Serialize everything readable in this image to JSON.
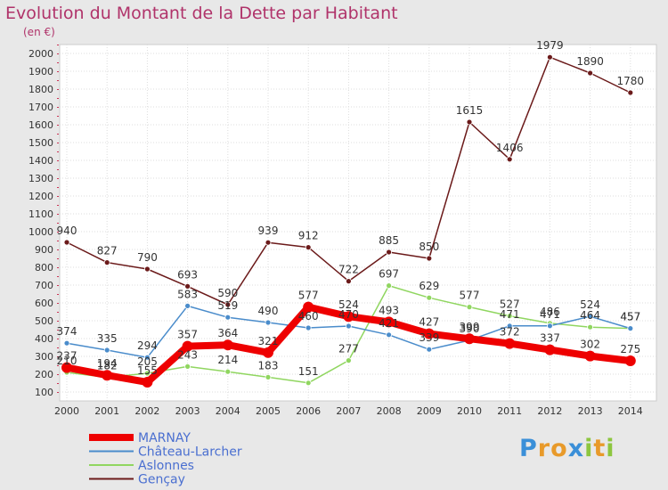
{
  "chart_data": {
    "type": "line",
    "title": "Evolution du Montant de la Dette par Habitant",
    "subtitle": "(en €)",
    "x": [
      "2000",
      "2001",
      "2002",
      "2003",
      "2004",
      "2005",
      "2006",
      "2007",
      "2008",
      "2009",
      "2010",
      "2011",
      "2012",
      "2013",
      "2014"
    ],
    "y_ticks": [
      100,
      200,
      300,
      400,
      500,
      600,
      700,
      800,
      900,
      1000,
      1100,
      1200,
      1300,
      1400,
      1500,
      1600,
      1700,
      1800,
      1900,
      2000
    ],
    "ylim": [
      100,
      2000
    ],
    "grid": true,
    "legend_position": "bottom-left",
    "series": [
      {
        "name": "MARNAY",
        "color": "#ee0000",
        "values": [
          237,
          194,
          155,
          357,
          364,
          321,
          577,
          524,
          493,
          427,
          399,
          372,
          337,
          302,
          275
        ],
        "labels": [
          "237",
          "194",
          "155",
          "357",
          "364",
          "321",
          "577",
          "524",
          "493",
          "427",
          "399",
          "372",
          "337",
          "302",
          "275"
        ]
      },
      {
        "name": "Château-Larcher",
        "color": "#4a8ccb",
        "values": [
          374,
          335,
          294,
          583,
          519,
          490,
          460,
          470,
          421,
          339,
          390,
          471,
          471,
          524,
          457
        ],
        "labels": [
          "374",
          "335",
          "294",
          "583",
          "519",
          "490",
          "460",
          "470",
          "421",
          "339",
          "390",
          "471",
          "471",
          "524",
          "457"
        ]
      },
      {
        "name": "Aslonnes",
        "color": "#90d660",
        "values": [
          210,
          182,
          205,
          243,
          214,
          183,
          151,
          277,
          697,
          629,
          577,
          527,
          486,
          464,
          457
        ],
        "labels": [
          "210",
          "182",
          "205",
          "243",
          "214",
          "183",
          "151",
          "277",
          "697",
          "629",
          "577",
          "527",
          "486",
          "464",
          "457"
        ]
      },
      {
        "name": "Gençay",
        "color": "#6b1a1a",
        "values": [
          940,
          827,
          790,
          693,
          590,
          939,
          912,
          722,
          885,
          850,
          1615,
          1406,
          1979,
          1890,
          1780
        ],
        "labels": [
          "940",
          "827",
          "790",
          "693",
          "590",
          "939",
          "912",
          "722",
          "885",
          "850",
          "1615",
          "1406",
          "1979",
          "1890",
          "1780"
        ]
      }
    ]
  },
  "brand": {
    "letters": [
      "P",
      "r",
      "o",
      "x",
      "i",
      "t",
      "i"
    ],
    "colors": [
      "#3a8fd8",
      "#e89a2a",
      "#e89a2a",
      "#3a8fd8",
      "#8dc63f",
      "#e89a2a",
      "#8dc63f"
    ]
  }
}
